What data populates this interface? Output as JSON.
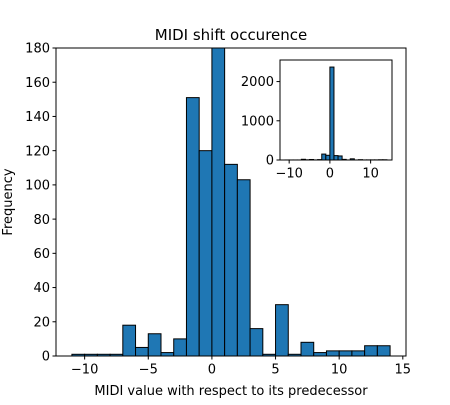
{
  "chart_data": [
    {
      "type": "histogram",
      "title": "MIDI shift occurence",
      "xlabel": "MIDI value with respect to its predecessor",
      "ylabel": "Frequency",
      "xlim": [
        -12.25,
        15.25
      ],
      "ylim": [
        0,
        180
      ],
      "xticks": [
        -10,
        -5,
        0,
        5,
        10,
        15
      ],
      "yticks": [
        0,
        20,
        40,
        60,
        80,
        100,
        120,
        140,
        160,
        180
      ],
      "bar_color": "#1f77b4",
      "edge_color": "#000000",
      "bins": [
        {
          "x0": -11,
          "x1": -10,
          "count": 1
        },
        {
          "x0": -10,
          "x1": -9,
          "count": 1
        },
        {
          "x0": -9,
          "x1": -8,
          "count": 1
        },
        {
          "x0": -8,
          "x1": -7,
          "count": 1
        },
        {
          "x0": -7,
          "x1": -6,
          "count": 18
        },
        {
          "x0": -6,
          "x1": -5,
          "count": 5
        },
        {
          "x0": -5,
          "x1": -4,
          "count": 13
        },
        {
          "x0": -4,
          "x1": -3,
          "count": 2
        },
        {
          "x0": -3,
          "x1": -2,
          "count": 10
        },
        {
          "x0": -2,
          "x1": -1,
          "count": 151
        },
        {
          "x0": -1,
          "x1": 0,
          "count": 120
        },
        {
          "x0": 0,
          "x1": 1,
          "count": 180
        },
        {
          "x0": 1,
          "x1": 2,
          "count": 112
        },
        {
          "x0": 2,
          "x1": 3,
          "count": 103
        },
        {
          "x0": 3,
          "x1": 4,
          "count": 16
        },
        {
          "x0": 4,
          "x1": 5,
          "count": 1
        },
        {
          "x0": 5,
          "x1": 6,
          "count": 30
        },
        {
          "x0": 6,
          "x1": 7,
          "count": 1
        },
        {
          "x0": 7,
          "x1": 8,
          "count": 8
        },
        {
          "x0": 8,
          "x1": 9,
          "count": 2
        },
        {
          "x0": 9,
          "x1": 10,
          "count": 3
        },
        {
          "x0": 10,
          "x1": 11,
          "count": 3
        },
        {
          "x0": 11,
          "x1": 12,
          "count": 3
        },
        {
          "x0": 12,
          "x1": 13,
          "count": 6
        },
        {
          "x0": 13,
          "x1": 14,
          "count": 6
        }
      ]
    },
    {
      "type": "histogram",
      "placement": "inset top-right",
      "title": "",
      "xlabel": "",
      "ylabel": "",
      "xlim": [
        -12.25,
        15.25
      ],
      "ylim": [
        0,
        2550
      ],
      "xticks": [
        -10,
        0,
        10
      ],
      "yticks": [
        0,
        1000,
        2000
      ],
      "bar_color": "#1f77b4",
      "edge_color": "#000000",
      "bins": [
        {
          "x0": -11,
          "x1": -10,
          "count": 1
        },
        {
          "x0": -10,
          "x1": -9,
          "count": 1
        },
        {
          "x0": -9,
          "x1": -8,
          "count": 1
        },
        {
          "x0": -8,
          "x1": -7,
          "count": 1
        },
        {
          "x0": -7,
          "x1": -6,
          "count": 18
        },
        {
          "x0": -6,
          "x1": -5,
          "count": 5
        },
        {
          "x0": -5,
          "x1": -4,
          "count": 13
        },
        {
          "x0": -4,
          "x1": -3,
          "count": 2
        },
        {
          "x0": -3,
          "x1": -2,
          "count": 10
        },
        {
          "x0": -2,
          "x1": -1,
          "count": 151
        },
        {
          "x0": -1,
          "x1": 0,
          "count": 120
        },
        {
          "x0": 0,
          "x1": 1,
          "count": 2370
        },
        {
          "x0": 1,
          "x1": 2,
          "count": 112
        },
        {
          "x0": 2,
          "x1": 3,
          "count": 103
        },
        {
          "x0": 3,
          "x1": 4,
          "count": 16
        },
        {
          "x0": 4,
          "x1": 5,
          "count": 1
        },
        {
          "x0": 5,
          "x1": 6,
          "count": 30
        },
        {
          "x0": 6,
          "x1": 7,
          "count": 1
        },
        {
          "x0": 7,
          "x1": 8,
          "count": 8
        },
        {
          "x0": 8,
          "x1": 9,
          "count": 2
        },
        {
          "x0": 9,
          "x1": 10,
          "count": 3
        },
        {
          "x0": 10,
          "x1": 11,
          "count": 3
        },
        {
          "x0": 11,
          "x1": 12,
          "count": 3
        },
        {
          "x0": 12,
          "x1": 13,
          "count": 6
        },
        {
          "x0": 13,
          "x1": 14,
          "count": 6
        }
      ]
    }
  ]
}
